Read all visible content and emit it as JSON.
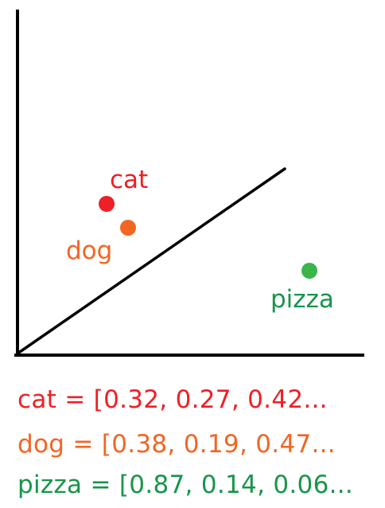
{
  "colors": {
    "axis": "#000000",
    "cat": "#ee1f25",
    "dog": "#f26522",
    "pizza": "#17954a",
    "pizza_point": "#3ab54a"
  },
  "points": [
    {
      "id": "cat",
      "label": "cat"
    },
    {
      "id": "dog",
      "label": "dog"
    },
    {
      "id": "pizza",
      "label": "pizza"
    }
  ],
  "vectors": [
    {
      "id": "cat",
      "text": "cat = [0.32, 0.27, 0.42..."
    },
    {
      "id": "dog",
      "text": "dog = [0.38, 0.19, 0.47..."
    },
    {
      "id": "pizza",
      "text": "pizza = [0.87, 0.14, 0.06..."
    }
  ]
}
